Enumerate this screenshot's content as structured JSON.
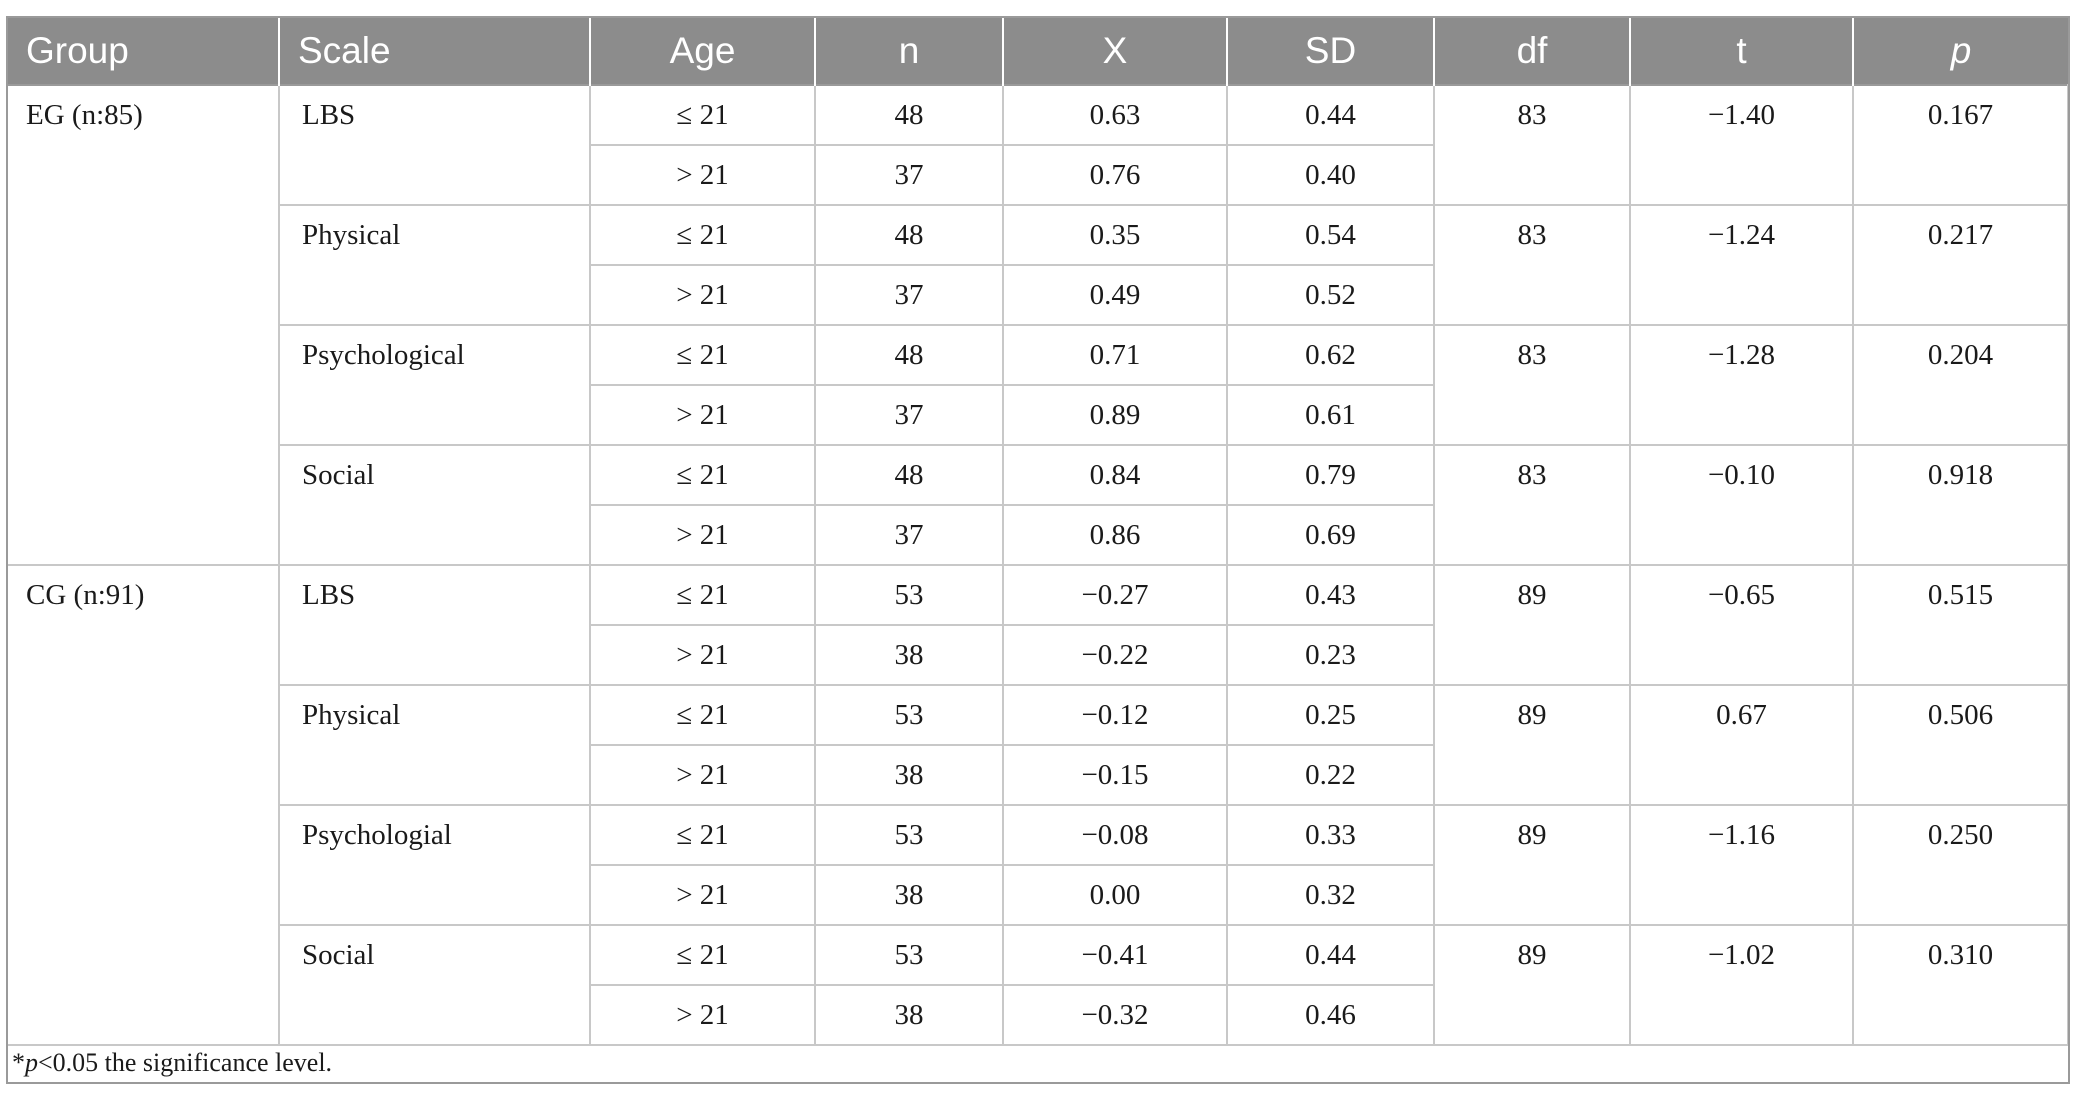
{
  "headers": {
    "group": "Group",
    "scale": "Scale",
    "age": "Age",
    "n": "n",
    "x": "X",
    "sd": "SD",
    "df": "df",
    "t": "t",
    "p": "p"
  },
  "groups": [
    {
      "label": "EG (n:85)",
      "scales": [
        {
          "name": "LBS",
          "df": "83",
          "t": "−1.40",
          "p": "0.167",
          "rows": [
            {
              "age": "≤ 21",
              "n": "48",
              "x": "0.63",
              "sd": "0.44"
            },
            {
              "age": "> 21",
              "n": "37",
              "x": "0.76",
              "sd": "0.40"
            }
          ]
        },
        {
          "name": "Physical",
          "df": "83",
          "t": "−1.24",
          "p": "0.217",
          "rows": [
            {
              "age": "≤ 21",
              "n": "48",
              "x": "0.35",
              "sd": "0.54"
            },
            {
              "age": "> 21",
              "n": "37",
              "x": "0.49",
              "sd": "0.52"
            }
          ]
        },
        {
          "name": "Psychological",
          "df": "83",
          "t": "−1.28",
          "p": "0.204",
          "rows": [
            {
              "age": "≤ 21",
              "n": "48",
              "x": "0.71",
              "sd": "0.62"
            },
            {
              "age": "> 21",
              "n": "37",
              "x": "0.89",
              "sd": "0.61"
            }
          ]
        },
        {
          "name": "Social",
          "df": "83",
          "t": "−0.10",
          "p": "0.918",
          "rows": [
            {
              "age": "≤ 21",
              "n": "48",
              "x": "0.84",
              "sd": "0.79"
            },
            {
              "age": "> 21",
              "n": "37",
              "x": "0.86",
              "sd": "0.69"
            }
          ]
        }
      ]
    },
    {
      "label": "CG (n:91)",
      "scales": [
        {
          "name": "LBS",
          "df": "89",
          "t": "−0.65",
          "p": "0.515",
          "rows": [
            {
              "age": "≤ 21",
              "n": "53",
              "x": "−0.27",
              "sd": "0.43"
            },
            {
              "age": "> 21",
              "n": "38",
              "x": "−0.22",
              "sd": "0.23"
            }
          ]
        },
        {
          "name": "Physical",
          "df": "89",
          "t": "0.67",
          "p": "0.506",
          "rows": [
            {
              "age": "≤ 21",
              "n": "53",
              "x": "−0.12",
              "sd": "0.25"
            },
            {
              "age": "> 21",
              "n": "38",
              "x": "−0.15",
              "sd": "0.22"
            }
          ]
        },
        {
          "name": "Psychologial",
          "df": "89",
          "t": "−1.16",
          "p": "0.250",
          "rows": [
            {
              "age": "≤ 21",
              "n": "53",
              "x": "−0.08",
              "sd": "0.33"
            },
            {
              "age": "> 21",
              "n": "38",
              "x": "0.00",
              "sd": "0.32"
            }
          ]
        },
        {
          "name": "Social",
          "df": "89",
          "t": "−1.02",
          "p": "0.310",
          "rows": [
            {
              "age": "≤ 21",
              "n": "53",
              "x": "−0.41",
              "sd": "0.44"
            },
            {
              "age": "> 21",
              "n": "38",
              "x": "−0.32",
              "sd": "0.46"
            }
          ]
        }
      ]
    }
  ],
  "footnote": {
    "star": "*",
    "p_symbol": "p",
    "text": "<0.05 the significance level."
  }
}
